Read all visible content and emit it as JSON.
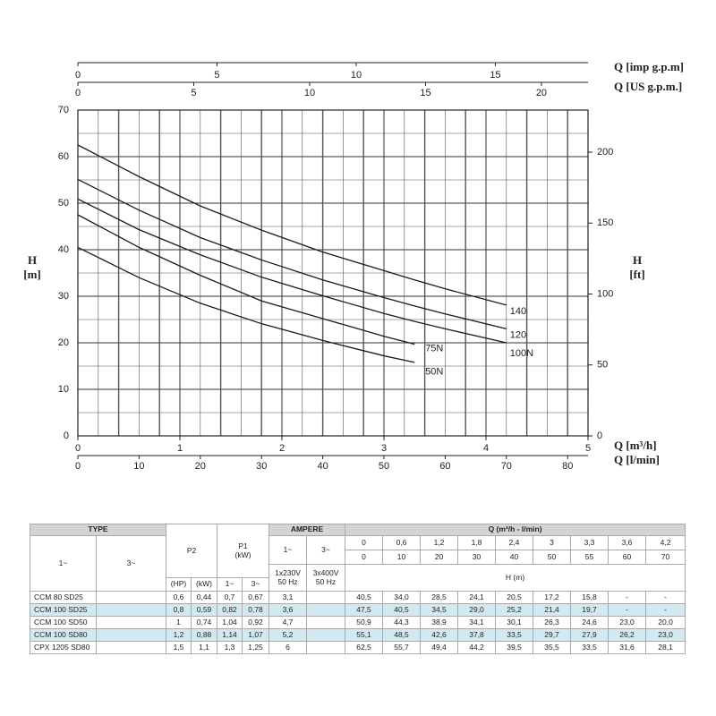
{
  "chart_data": {
    "type": "line",
    "x_label": "Q [m³/h]",
    "xlim": [
      0,
      5
    ],
    "xticks": [
      0,
      1,
      2,
      3,
      4,
      5
    ],
    "x_axes": [
      {
        "label": "Q [l/min]",
        "lim": [
          0,
          83.33
        ],
        "ticks": [
          0,
          10,
          20,
          30,
          40,
          50,
          60,
          70,
          80
        ]
      },
      {
        "label": "Q [imp g.p.m]",
        "lim": [
          0,
          18.33
        ],
        "ticks": [
          0,
          5,
          10,
          15
        ]
      },
      {
        "label": "Q [US g.p.m.]",
        "lim": [
          0,
          22.01
        ],
        "ticks": [
          0,
          5,
          10,
          15,
          20
        ]
      }
    ],
    "y_label": [
      "H",
      "[m]"
    ],
    "ylim": [
      0,
      70
    ],
    "yticks": [
      0,
      10,
      20,
      30,
      40,
      50,
      60,
      70
    ],
    "y2_label": [
      "H",
      "[ft]"
    ],
    "y2lim": [
      0,
      229.66
    ],
    "y2ticks": [
      0,
      50,
      100,
      150,
      200
    ],
    "grid": true,
    "x": [
      0,
      0.6,
      1.2,
      1.8,
      2.4,
      3,
      3.3,
      3.6,
      4.2
    ],
    "series": [
      {
        "name": "50N",
        "color": "#1a1a1a",
        "values": [
          40.5,
          34.0,
          28.5,
          24.1,
          20.5,
          17.2,
          15.8,
          null,
          null
        ]
      },
      {
        "name": "75N",
        "color": "#1a1a1a",
        "values": [
          47.5,
          40.5,
          34.5,
          29.0,
          25.2,
          21.4,
          19.7,
          null,
          null
        ]
      },
      {
        "name": "100N",
        "color": "#1a1a1a",
        "values": [
          50.9,
          44.3,
          38.9,
          34.1,
          30.1,
          26.3,
          24.6,
          23.0,
          20.0
        ]
      },
      {
        "name": "120",
        "color": "#1a1a1a",
        "values": [
          55.1,
          48.5,
          42.6,
          37.8,
          33.5,
          29.7,
          27.9,
          26.2,
          23.0
        ]
      },
      {
        "name": "140",
        "color": "#1a1a1a",
        "values": [
          62.5,
          55.7,
          49.4,
          44.2,
          39.5,
          35.5,
          33.5,
          31.6,
          28.1
        ]
      }
    ]
  },
  "table": {
    "header": {
      "type": "TYPE",
      "type_phases": [
        "1~",
        "3~"
      ],
      "p2": "P2",
      "p2_units": [
        "(HP)",
        "(kW)"
      ],
      "p1": [
        "P1",
        "(kW)"
      ],
      "p1_phases": [
        "1~",
        "3~"
      ],
      "ampere": "AMPERE",
      "ampere_phases": [
        "1~",
        "3~"
      ],
      "voltages": [
        [
          "1x230V",
          "50 Hz"
        ],
        [
          "3x400V",
          "50 Hz"
        ]
      ],
      "q": "Q (m³/h - l/min)",
      "q_m3h": [
        "0",
        "0,6",
        "1,2",
        "1,8",
        "2,4",
        "3",
        "3,3",
        "3,6",
        "4,2"
      ],
      "q_lmin": [
        "0",
        "10",
        "20",
        "30",
        "40",
        "50",
        "55",
        "60",
        "70"
      ],
      "h": "H (m)"
    },
    "rows": [
      [
        "CCM 80 SD25",
        null,
        "0,6",
        "0,44",
        "0,7",
        "0,67",
        "3,1",
        null,
        "40,5",
        "34,0",
        "28,5",
        "24,1",
        "20,5",
        "17,2",
        "15,8",
        "-",
        "-"
      ],
      [
        "CCM 100 SD25",
        null,
        "0,8",
        "0,59",
        "0,82",
        "0,78",
        "3,6",
        null,
        "47,5",
        "40,5",
        "34,5",
        "29,0",
        "25,2",
        "21,4",
        "19,7",
        "-",
        "-"
      ],
      [
        "CCM 100 SD50",
        null,
        "1",
        "0,74",
        "1,04",
        "0,92",
        "4,7",
        null,
        "50,9",
        "44,3",
        "38,9",
        "34,1",
        "30,1",
        "26,3",
        "24,6",
        "23,0",
        "20,0"
      ],
      [
        "CCM 100 SD80",
        null,
        "1,2",
        "0,88",
        "1,14",
        "1,07",
        "5,2",
        null,
        "55,1",
        "48,5",
        "42,6",
        "37,8",
        "33,5",
        "29,7",
        "27,9",
        "26,2",
        "23,0"
      ],
      [
        "CPX 1205 SD80",
        null,
        "1,5",
        "1,1",
        "1,3",
        "1,25",
        "6",
        null,
        "62,5",
        "55,7",
        "49,4",
        "44,2",
        "39,5",
        "35,5",
        "33,5",
        "31,6",
        "28,1"
      ]
    ]
  }
}
